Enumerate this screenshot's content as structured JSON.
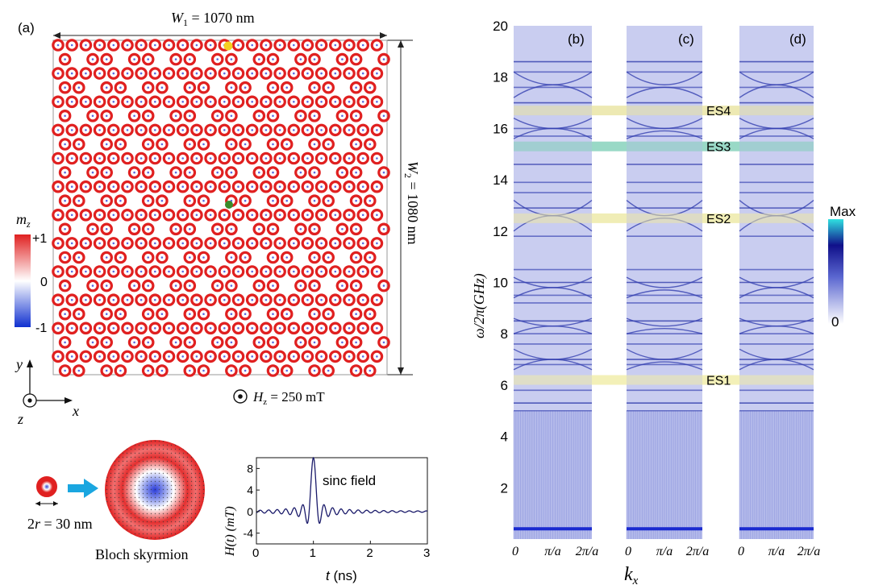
{
  "panel_a": {
    "label": "(a)",
    "w1_label": "W",
    "w1_sub": "1",
    "w1_value": " = 1070 nm",
    "w2_label": "W",
    "w2_sub": "2",
    "w2_value": " = 1080 nm",
    "field_label": "H",
    "field_sub": "z",
    "field_value": " = 250 mT",
    "lattice_rows": 24,
    "lattice_cols": 24,
    "skyrmion_color": "#e02020",
    "yellow_marker_color": "#f5d020",
    "green_marker_color": "#3a8a2a"
  },
  "colorbar_mz": {
    "title": "m",
    "title_sub": "z",
    "ticks": [
      "+1",
      "0",
      "-1"
    ],
    "colors": [
      "#e02020",
      "#ffffff",
      "#1030d0"
    ]
  },
  "axes_xyz": {
    "y": "y",
    "x": "x",
    "z": "z"
  },
  "skyrmion_inset": {
    "size_label": "2",
    "size_r": "r",
    "size_value": " = 30 nm",
    "caption": "Bloch skyrmion",
    "arrow_color": "#1aa6e0"
  },
  "sinc_plot": {
    "ylabel": "H(t) (mT)",
    "xlabel_var": "t",
    "xlabel_unit": " (ns)",
    "annotation": "sinc field",
    "xticks": [
      "0",
      "1",
      "2",
      "3"
    ],
    "yticks": [
      "8",
      "4",
      "0",
      "-4"
    ],
    "xlim": [
      0,
      3
    ],
    "ylim": [
      -6,
      10
    ],
    "pulse_center": 1,
    "pulse_peak": 10
  },
  "chart_data": {
    "type": "heatmap",
    "ylabel": "ω/2π(GHz)",
    "xlabel": "k",
    "xlabel_sub": "x",
    "ylim": [
      0,
      20
    ],
    "yticks": [
      2,
      4,
      6,
      8,
      10,
      12,
      14,
      16,
      18,
      20
    ],
    "xtick_labels": [
      "0",
      "π/a",
      "2π/a"
    ],
    "panels": [
      "(b)",
      "(c)",
      "(d)"
    ],
    "edge_states": [
      {
        "name": "ES4",
        "freq": 16.7,
        "color": "#e8e3a0"
      },
      {
        "name": "ES3",
        "freq": 15.3,
        "color": "#7fcfb8"
      },
      {
        "name": "ES2",
        "freq": 12.5,
        "color": "#ece8a4"
      },
      {
        "name": "ES1",
        "freq": 6.2,
        "color": "#f0eca6"
      }
    ],
    "band_frequencies": [
      18.6,
      18.2,
      17.6,
      17.0,
      16.0,
      15.7,
      14.6,
      13.9,
      13.5,
      12.9,
      11.8,
      10.5,
      10.0,
      9.5,
      9.2,
      8.5,
      8.0,
      7.6,
      7.0,
      6.8,
      5.8,
      5.3,
      5.0,
      0.4
    ],
    "colorbar": {
      "max_label": "Max",
      "min_label": "0",
      "colors": [
        "#ffffff",
        "#3040c0",
        "#10108a",
        "#30e0e0"
      ]
    }
  }
}
